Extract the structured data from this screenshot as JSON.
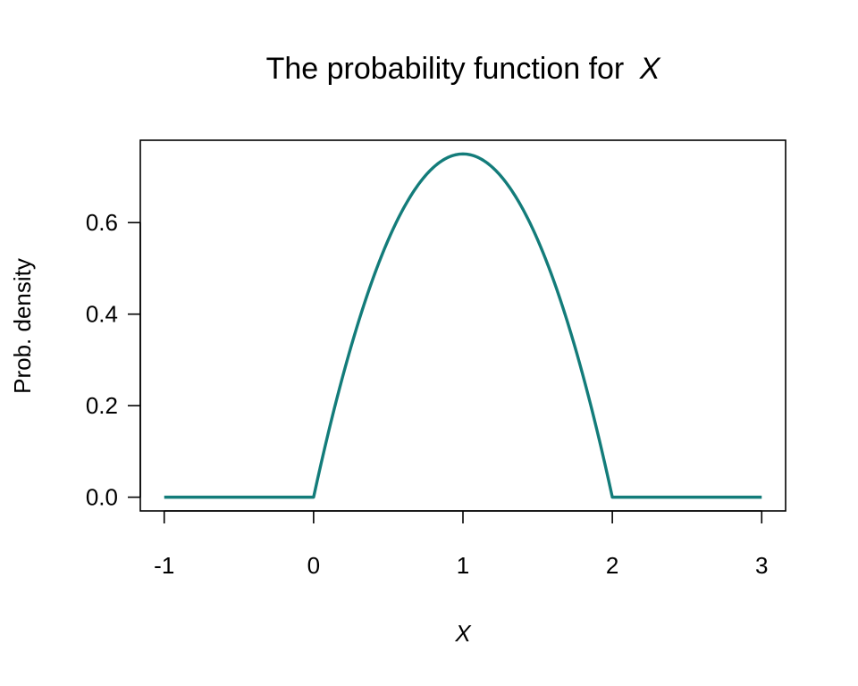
{
  "chart_data": {
    "type": "line",
    "title": "The probability function for",
    "title_var": "X",
    "xlabel": "X",
    "ylabel": "Prob. density",
    "xlim": [
      -1.16,
      3.16
    ],
    "ylim": [
      -0.03,
      0.78
    ],
    "x_ticks": [
      -1,
      0,
      1,
      2,
      3
    ],
    "x_tick_labels": [
      "-1",
      "0",
      "1",
      "2",
      "3"
    ],
    "y_ticks": [
      0.0,
      0.2,
      0.4,
      0.6
    ],
    "y_tick_labels": [
      "0.0",
      "0.2",
      "0.4",
      "0.6"
    ],
    "grid": false,
    "series": [
      {
        "color": "#137c7a",
        "x": [
          -1,
          -0.5,
          0,
          0.1,
          0.2,
          0.3,
          0.4,
          0.5,
          0.6,
          0.7,
          0.8,
          0.9,
          1.0,
          1.1,
          1.2,
          1.3,
          1.4,
          1.5,
          1.6,
          1.7,
          1.8,
          1.9,
          2.0,
          2.5,
          3
        ],
        "y": [
          0,
          0,
          0,
          0.1425,
          0.27,
          0.3825,
          0.48,
          0.5625,
          0.63,
          0.6825,
          0.72,
          0.7425,
          0.75,
          0.7425,
          0.72,
          0.6825,
          0.63,
          0.5625,
          0.48,
          0.3825,
          0.27,
          0.1425,
          0,
          0,
          0
        ]
      }
    ]
  }
}
